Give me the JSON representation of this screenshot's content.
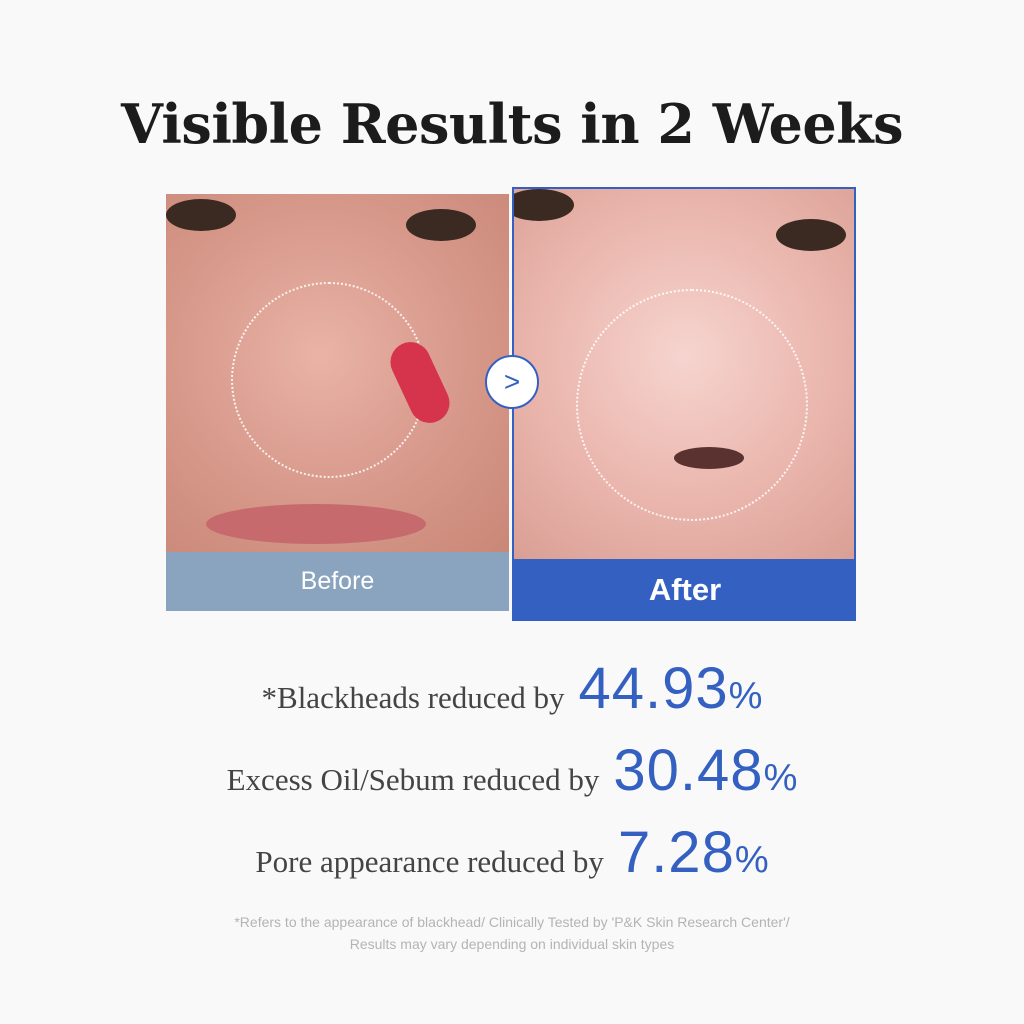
{
  "title": "Visible Results in 2 Weeks",
  "before_label": "Before",
  "after_label": "After",
  "arrow_icon": "chevron-right-icon",
  "stats": [
    {
      "text": "*Blackheads reduced by",
      "value": "44.93",
      "unit": "%"
    },
    {
      "text": "Excess Oil/Sebum reduced by",
      "value": "30.48",
      "unit": "%"
    },
    {
      "text": "Pore appearance reduced by",
      "value": "7.28",
      "unit": "%"
    }
  ],
  "footnote": [
    "*Refers to the appearance of blackhead/ Clinically Tested by 'P&K Skin Research Center'/",
    "Results may vary depending on individual skin types"
  ],
  "colors": {
    "accent": "#3461c1",
    "before": "#8aa4bf"
  }
}
